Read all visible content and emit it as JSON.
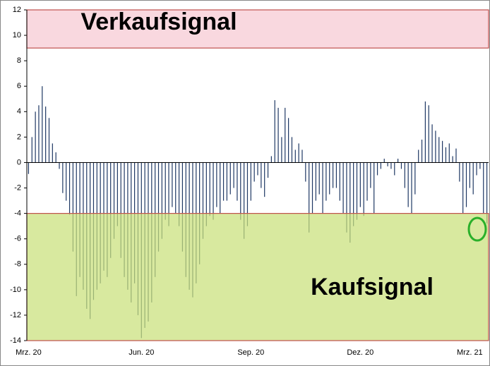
{
  "chart_data": {
    "type": "bar",
    "categories": [
      "Mrz. 20",
      null,
      null,
      null,
      null,
      null,
      null,
      null,
      null,
      null,
      null,
      null,
      null,
      null,
      null,
      null,
      null,
      null,
      null,
      null,
      null,
      null,
      null,
      null,
      null,
      null,
      null,
      null,
      null,
      null,
      null,
      null,
      null,
      "Jun. 20",
      null,
      null,
      null,
      null,
      null,
      null,
      null,
      null,
      null,
      null,
      null,
      null,
      null,
      null,
      null,
      null,
      null,
      null,
      null,
      null,
      null,
      null,
      null,
      null,
      null,
      null,
      null,
      null,
      null,
      null,
      null,
      "Sep. 20",
      null,
      null,
      null,
      null,
      null,
      null,
      null,
      null,
      null,
      null,
      null,
      null,
      null,
      null,
      null,
      null,
      null,
      null,
      null,
      null,
      null,
      null,
      null,
      null,
      null,
      null,
      null,
      null,
      null,
      null,
      null,
      "Dez. 20",
      null,
      null,
      null,
      null,
      null,
      null,
      null,
      null,
      null,
      null,
      null,
      null,
      null,
      null,
      null,
      null,
      null,
      null,
      null,
      null,
      null,
      null,
      null,
      null,
      null,
      null,
      null,
      null,
      null,
      null,
      null,
      "Mrz. 21",
      null,
      null,
      null,
      null,
      null
    ],
    "values": [
      -0.9,
      2,
      4,
      4.5,
      6,
      4.4,
      3.5,
      1.5,
      0.8,
      -0.5,
      -2.4,
      -3,
      -4.1,
      -7,
      -10.5,
      -9,
      -10,
      -11.5,
      -12.3,
      -10.8,
      -10,
      -9.5,
      -8.5,
      -9,
      -7.5,
      -6,
      -5,
      -7.5,
      -9,
      -10,
      -11,
      -9.5,
      -12,
      -13.8,
      -13,
      -12.5,
      -11,
      -9,
      -7,
      -6,
      -4.5,
      -5,
      -3.5,
      -4,
      -5,
      -7,
      -9,
      -10,
      -10.6,
      -9.5,
      -8,
      -6,
      -5,
      -4.2,
      -4.5,
      -3.5,
      -4,
      -3,
      -3,
      -2.5,
      -2,
      -3,
      -4.5,
      -6,
      -5,
      -3,
      -1.5,
      -1,
      -2,
      -2.7,
      -1.2,
      0.5,
      4.9,
      4.3,
      2,
      4.3,
      3.5,
      2,
      1,
      1.5,
      1,
      -1.5,
      -5.5,
      -4,
      -3,
      -2.5,
      -4,
      -3,
      -2.5,
      -2,
      -2,
      -3,
      -4,
      -5.5,
      -6.3,
      -5,
      -4.5,
      -3.5,
      -4.2,
      -3,
      -2,
      -4,
      -1,
      -0.5,
      0.3,
      -0.3,
      -0.5,
      -1,
      0.3,
      -0.5,
      -2,
      -3.5,
      -4,
      -2.5,
      1,
      1.8,
      4.8,
      4.5,
      3,
      2.5,
      2,
      1.7,
      1.2,
      1.5,
      0.5,
      1.1,
      -1.5,
      -4,
      -3.5,
      -2,
      -2.5,
      -1,
      -0.5,
      -4,
      -4.8
    ],
    "color": "#1f3864",
    "ylim": [
      -14,
      12
    ],
    "yticks": [
      -14,
      -12,
      -10,
      -8,
      -6,
      -4,
      -2,
      0,
      2,
      4,
      6,
      8,
      10,
      12
    ],
    "bands": [
      {
        "label": "Verkaufsignal",
        "range": [
          9,
          12
        ],
        "color": "#f6c9d2",
        "border": "#c0504d"
      },
      {
        "label": "Kaufsignal",
        "range": [
          -14,
          -4
        ],
        "color": "#c9e07a",
        "border": "#c0504d"
      }
    ]
  }
}
